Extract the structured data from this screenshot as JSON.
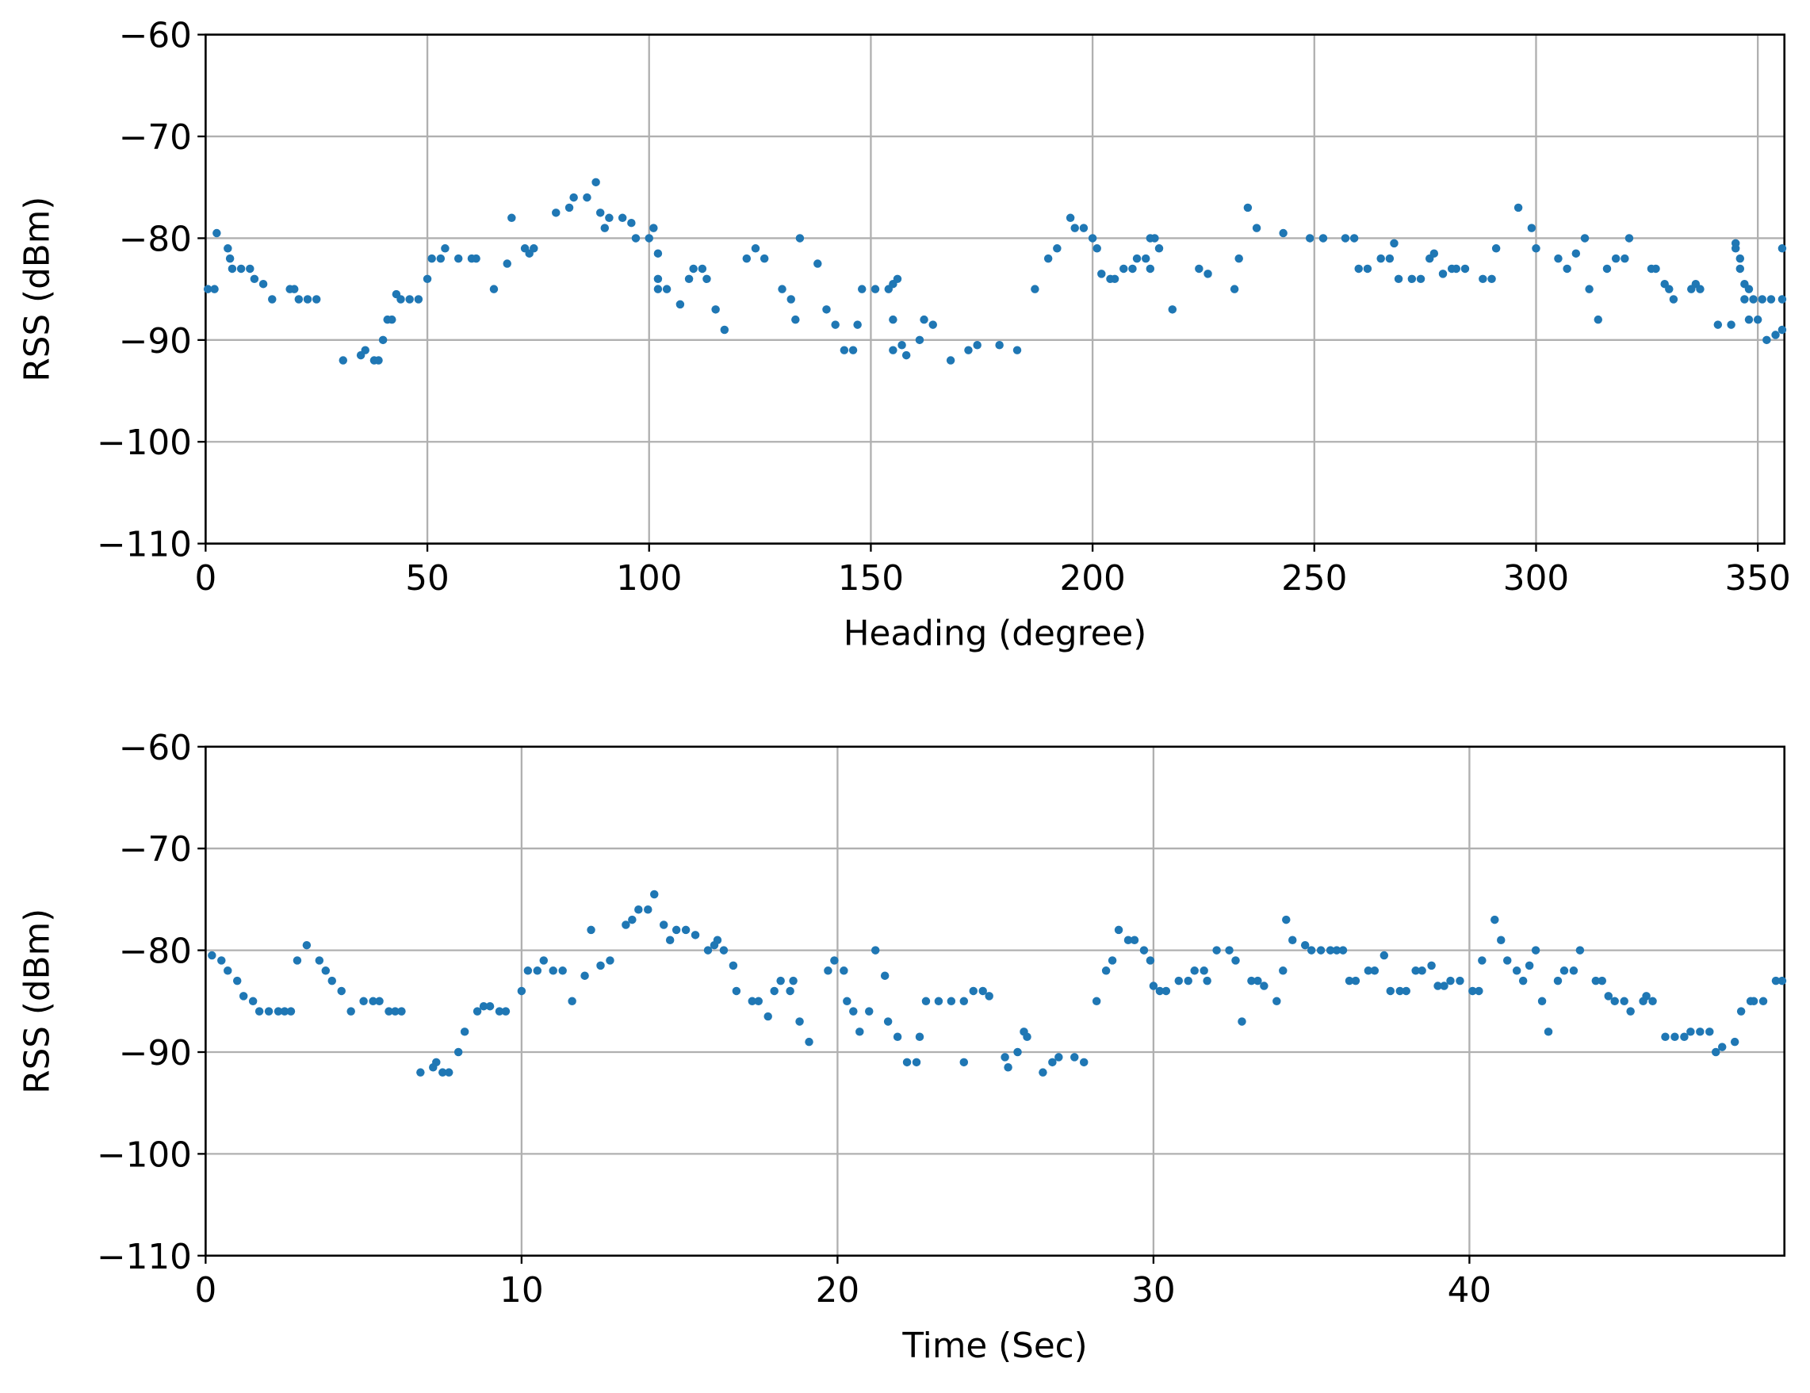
{
  "chart_data": [
    {
      "type": "scatter",
      "xlabel": "Heading (degree)",
      "ylabel": "RSS (dBm)",
      "color": "#1f77b4",
      "grid": true,
      "xlim": [
        0,
        356
      ],
      "ylim": [
        -110,
        -60
      ],
      "xticks": [
        0,
        50,
        100,
        150,
        200,
        250,
        300,
        350
      ],
      "yticks": [
        {
          "value": -110,
          "label": "−110"
        },
        {
          "value": -100,
          "label": "−100"
        },
        {
          "value": -90,
          "label": "−90"
        },
        {
          "value": -80,
          "label": "−80"
        },
        {
          "value": -70,
          "label": "−70"
        },
        {
          "value": -60,
          "label": "−60"
        }
      ],
      "x": [
        0.5,
        2,
        2.5,
        5,
        5.5,
        6,
        8,
        10,
        11,
        13,
        15,
        19,
        20,
        21,
        23,
        25,
        31,
        35,
        36,
        38,
        39,
        40,
        41,
        42,
        43,
        44,
        46,
        48,
        50,
        51,
        53,
        54,
        57,
        60,
        61,
        65,
        68,
        69,
        72,
        73,
        74,
        79,
        82,
        83,
        86,
        88,
        89,
        90,
        91,
        94,
        96,
        97,
        100,
        101,
        102,
        102,
        102,
        104,
        107,
        109,
        110,
        112,
        113,
        115,
        117,
        122,
        124,
        126,
        130,
        132,
        133,
        134,
        138,
        140,
        142,
        144,
        146,
        147,
        148,
        151,
        154,
        155,
        155,
        155,
        156,
        157,
        158,
        161,
        162,
        164,
        168,
        172,
        174,
        179,
        183,
        187,
        190,
        192,
        195,
        196,
        198,
        200,
        201,
        202,
        204,
        205,
        207,
        209,
        210,
        212,
        213,
        213,
        214,
        215,
        218,
        224,
        226,
        232,
        233,
        235,
        237,
        243,
        249,
        252,
        257,
        259,
        260,
        262,
        265,
        267,
        268,
        269,
        272,
        274,
        276,
        277,
        279,
        281,
        282,
        284,
        288,
        290,
        291,
        296,
        299,
        300,
        305,
        307,
        309,
        311,
        312,
        314,
        316,
        318,
        320,
        321,
        326,
        327,
        329,
        330,
        331,
        335,
        336,
        337,
        341,
        344,
        345,
        345,
        346,
        346,
        347,
        347,
        348,
        348,
        349,
        350,
        351,
        352,
        353,
        354,
        355.5,
        355.5,
        355.5
      ],
      "values": [
        -85,
        -85,
        -79.5,
        -81,
        -82,
        -83,
        -83,
        -83,
        -84,
        -84.5,
        -86,
        -85,
        -85,
        -86,
        -86,
        -86,
        -92,
        -91.5,
        -91,
        -92,
        -92,
        -90,
        -88,
        -88,
        -85.5,
        -86,
        -86,
        -86,
        -84,
        -82,
        -82,
        -81,
        -82,
        -82,
        -82,
        -85,
        -82.5,
        -78,
        -81,
        -81.5,
        -81,
        -77.5,
        -77,
        -76,
        -76,
        -74.5,
        -77.5,
        -79,
        -78,
        -78,
        -78.5,
        -80,
        -80,
        -79,
        -81.5,
        -84,
        -85,
        -85,
        -86.5,
        -84,
        -83,
        -83,
        -84,
        -87,
        -89,
        -82,
        -81,
        -82,
        -85,
        -86,
        -88,
        -80,
        -82.5,
        -87,
        -88.5,
        -91,
        -91,
        -88.5,
        -85,
        -85,
        -85,
        -84.5,
        -88,
        -91,
        -84,
        -90.5,
        -91.5,
        -90,
        -88,
        -88.5,
        -92,
        -91,
        -90.5,
        -90.5,
        -91,
        -85,
        -82,
        -81,
        -78,
        -79,
        -79,
        -80,
        -81,
        -83.5,
        -84,
        -84,
        -83,
        -83,
        -82,
        -82,
        -83,
        -80,
        -80,
        -81,
        -87,
        -83,
        -83.5,
        -85,
        -82,
        -77,
        -79,
        -79.5,
        -80,
        -80,
        -80,
        -80,
        -83,
        -83,
        -82,
        -82,
        -80.5,
        -84,
        -84,
        -84,
        -82,
        -81.5,
        -83.5,
        -83,
        -83,
        -83,
        -84,
        -84,
        -81,
        -77,
        -79,
        -81,
        -82,
        -83,
        -81.5,
        -80,
        -85,
        -88,
        -83,
        -82,
        -82,
        -80,
        -83,
        -83,
        -84.5,
        -85,
        -86,
        -85,
        -84.5,
        -85,
        -88.5,
        -88.5,
        -80.5,
        -81,
        -82,
        -83,
        -84.5,
        -86,
        -85,
        -88,
        -86,
        -88,
        -86,
        -90,
        -86,
        -89.5,
        -81,
        -86,
        -89
      ]
    },
    {
      "type": "scatter",
      "xlabel": "Time (Sec)",
      "ylabel": "RSS (dBm)",
      "color": "#1f77b4",
      "grid": true,
      "xlim": [
        0,
        49.97
      ],
      "ylim": [
        -110,
        -60
      ],
      "xticks": [
        0,
        10,
        20,
        30,
        40
      ],
      "yticks": [
        {
          "value": -110,
          "label": "−110"
        },
        {
          "value": -100,
          "label": "−100"
        },
        {
          "value": -90,
          "label": "−90"
        },
        {
          "value": -80,
          "label": "−80"
        },
        {
          "value": -70,
          "label": "−70"
        },
        {
          "value": -60,
          "label": "−60"
        }
      ],
      "x": [
        0.2,
        0.5,
        0.7,
        1,
        1.2,
        1.5,
        1.7,
        2,
        2.3,
        2.5,
        2.7,
        2.9,
        3.2,
        3.6,
        3.8,
        4,
        4.3,
        4.6,
        5,
        5.3,
        5.5,
        5.8,
        6,
        6.2,
        6.8,
        7.2,
        7.3,
        7.5,
        7.7,
        8,
        8.2,
        8.6,
        8.8,
        9,
        9.3,
        9.5,
        10,
        10.2,
        10.5,
        10.7,
        11,
        11.3,
        11.6,
        12,
        12.2,
        12.5,
        12.8,
        13.3,
        13.5,
        13.7,
        14,
        14.2,
        14.5,
        14.7,
        14.9,
        15.2,
        15.5,
        15.9,
        16.1,
        16.2,
        16.4,
        16.7,
        16.8,
        17.3,
        17.5,
        17.8,
        18,
        18.2,
        18.6,
        18.5,
        18.8,
        19.1,
        19.7,
        19.9,
        20.2,
        20.3,
        20.5,
        20.7,
        21,
        21.2,
        21.5,
        21.6,
        21.9,
        22.2,
        22.5,
        22.6,
        22.8,
        23.2,
        23.6,
        24,
        24,
        24.3,
        24.6,
        24.8,
        25.3,
        25.4,
        25.7,
        25.9,
        26,
        26.5,
        26.8,
        27,
        27.5,
        27.8,
        28.2,
        28.5,
        28.7,
        28.9,
        29.2,
        29.4,
        29.7,
        29.9,
        30,
        30.2,
        30.4,
        30.8,
        31.1,
        31.3,
        31.6,
        31.7,
        32,
        32.4,
        32.6,
        32.8,
        33.1,
        33.3,
        33.5,
        33.9,
        34.1,
        34.2,
        34.4,
        34.8,
        35,
        35.3,
        35.6,
        35.8,
        36,
        36.2,
        36.4,
        36.8,
        37,
        37.3,
        37.5,
        37.8,
        38,
        38.3,
        38.5,
        38.8,
        39,
        39.2,
        39.4,
        39.7,
        40.1,
        40.3,
        40.4,
        40.8,
        41,
        41.2,
        41.5,
        41.7,
        41.9,
        42.1,
        42.3,
        42.5,
        42.8,
        43,
        43.3,
        43.5,
        44,
        44.2,
        44.4,
        44.6,
        44.9,
        45.1,
        45.5,
        45.6,
        45.8,
        46.2,
        46.5,
        46.8,
        47,
        47.3,
        47.6,
        47.8,
        48,
        48.4,
        48.6,
        48.9,
        49,
        49.3,
        49.7,
        49.9
      ],
      "values": [
        -80.5,
        -81,
        -82,
        -83,
        -84.5,
        -85,
        -86,
        -86,
        -86,
        -86,
        -86,
        -81,
        -79.5,
        -81,
        -82,
        -83,
        -84,
        -86,
        -85,
        -85,
        -85,
        -86,
        -86,
        -86,
        -92,
        -91.5,
        -91,
        -92,
        -92,
        -90,
        -88,
        -86,
        -85.5,
        -85.5,
        -86,
        -86,
        -84,
        -82,
        -82,
        -81,
        -82,
        -82,
        -85,
        -82.5,
        -78,
        -81.5,
        -81,
        -77.5,
        -77,
        -76,
        -76,
        -74.5,
        -77.5,
        -79,
        -78,
        -78,
        -78.5,
        -80,
        -79.5,
        -79,
        -80,
        -81.5,
        -84,
        -85,
        -85,
        -86.5,
        -84,
        -83,
        -83,
        -84,
        -87,
        -89,
        -82,
        -81,
        -82,
        -85,
        -86,
        -88,
        -86,
        -80,
        -82.5,
        -87,
        -88.5,
        -91,
        -91,
        -88.5,
        -85,
        -85,
        -85,
        -85,
        -91,
        -84,
        -84,
        -84.5,
        -90.5,
        -91.5,
        -90,
        -88,
        -88.5,
        -92,
        -91,
        -90.5,
        -90.5,
        -91,
        -85,
        -82,
        -81,
        -78,
        -79,
        -79,
        -80,
        -81,
        -83.5,
        -84,
        -84,
        -83,
        -83,
        -82,
        -82,
        -83,
        -80,
        -80,
        -81,
        -87,
        -83,
        -83,
        -83.5,
        -85,
        -82,
        -77,
        -79,
        -79.5,
        -80,
        -80,
        -80,
        -80,
        -80,
        -83,
        -83,
        -82,
        -82,
        -80.5,
        -84,
        -84,
        -84,
        -82,
        -82,
        -81.5,
        -83.5,
        -83.5,
        -83,
        -83,
        -84,
        -84,
        -81,
        -77,
        -79,
        -81,
        -82,
        -83,
        -81.5,
        -80,
        -85,
        -88,
        -83,
        -82,
        -82,
        -80,
        -83,
        -83,
        -84.5,
        -85,
        -85,
        -86,
        -85,
        -84.5,
        -85,
        -88.5,
        -88.5,
        -88.5,
        -88,
        -88,
        -88,
        -90,
        -89.5,
        -89,
        -86,
        -85,
        -85,
        -85,
        -83,
        -83
      ]
    }
  ]
}
